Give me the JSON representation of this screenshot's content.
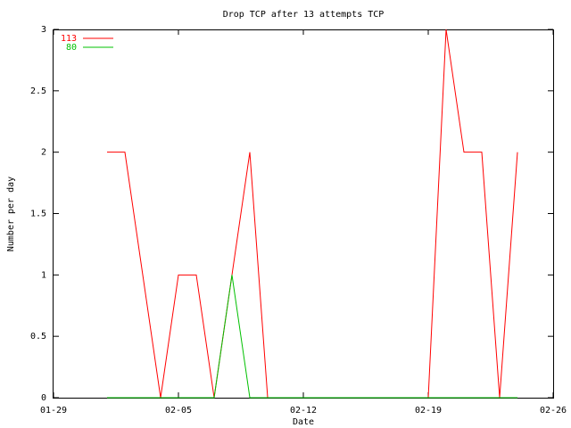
{
  "chart_data": {
    "type": "line",
    "title": "Drop TCP after 13 attempts TCP",
    "xlabel": "Date",
    "ylabel": "Number per day",
    "x": [
      "02-01",
      "02-02",
      "02-03",
      "02-04",
      "02-05",
      "02-06",
      "02-07",
      "02-08",
      "02-09",
      "02-10",
      "02-11",
      "02-12",
      "02-13",
      "02-14",
      "02-15",
      "02-16",
      "02-17",
      "02-18",
      "02-19",
      "02-20",
      "02-21",
      "02-22",
      "02-23",
      "02-24"
    ],
    "series": [
      {
        "name": "113",
        "color": "#ff0000",
        "values": [
          2,
          2,
          1,
          0,
          1,
          1,
          0,
          1,
          2,
          0,
          0,
          0,
          0,
          0,
          0,
          0,
          0,
          0,
          0,
          3,
          2,
          2,
          0,
          2
        ]
      },
      {
        "name": "80",
        "color": "#00c000",
        "values": [
          0,
          0,
          0,
          0,
          0,
          0,
          0,
          1,
          0,
          0,
          0,
          0,
          0,
          0,
          0,
          0,
          0,
          0,
          0,
          0,
          0,
          0,
          0,
          0
        ]
      }
    ],
    "xlim": [
      "01-29",
      "02-26"
    ],
    "xticks": [
      "01-29",
      "02-05",
      "02-12",
      "02-19",
      "02-26"
    ],
    "ylim": [
      0,
      3
    ],
    "yticks": [
      0,
      0.5,
      1,
      1.5,
      2,
      2.5,
      3
    ],
    "grid": false,
    "legend": "top-left"
  }
}
